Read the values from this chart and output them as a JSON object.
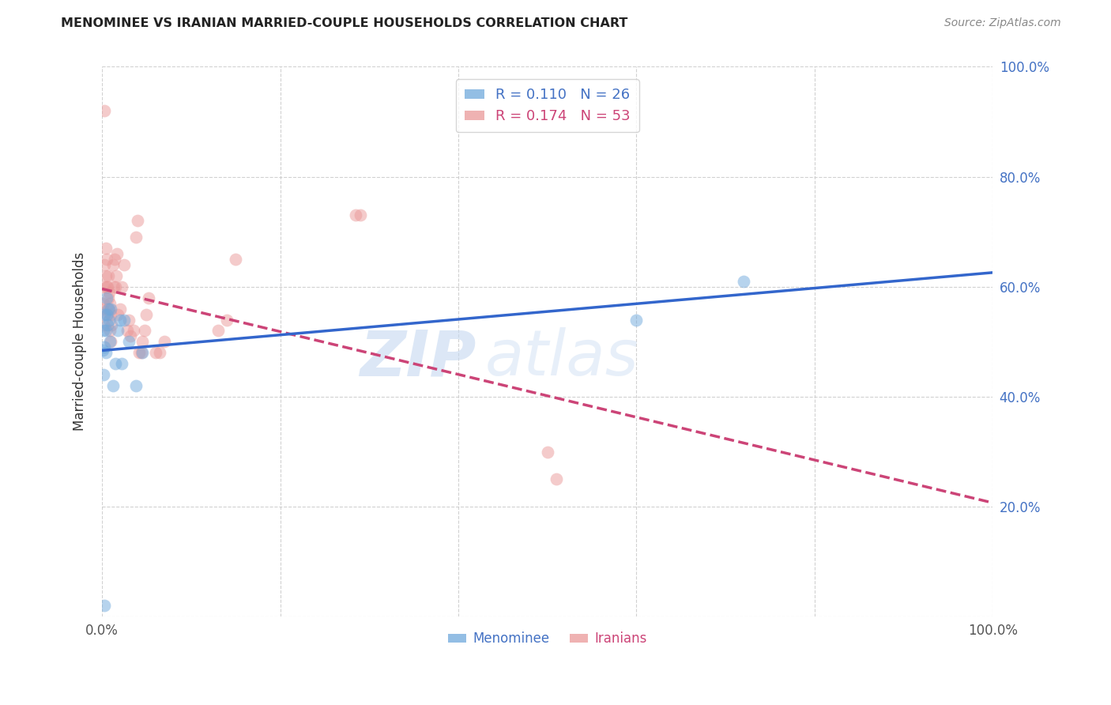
{
  "title": "MENOMINEE VS IRANIAN MARRIED-COUPLE HOUSEHOLDS CORRELATION CHART",
  "source": "Source: ZipAtlas.com",
  "ylabel": "Married-couple Households",
  "legend_menominee": "Menominee",
  "legend_iranians": "Iranians",
  "r_menominee": 0.11,
  "n_menominee": 26,
  "r_iranians": 0.174,
  "n_iranians": 53,
  "menominee_color": "#6fa8dc",
  "iranians_color": "#ea9999",
  "menominee_line_color": "#3366cc",
  "iranians_line_color": "#cc4477",
  "background_color": "#ffffff",
  "grid_color": "#cccccc",
  "menominee_x": [
    0.001,
    0.002,
    0.002,
    0.003,
    0.003,
    0.004,
    0.004,
    0.005,
    0.005,
    0.006,
    0.007,
    0.008,
    0.009,
    0.01,
    0.012,
    0.015,
    0.018,
    0.02,
    0.022,
    0.025,
    0.03,
    0.038,
    0.045,
    0.6,
    0.72,
    0.003
  ],
  "menominee_y": [
    0.485,
    0.44,
    0.52,
    0.49,
    0.55,
    0.52,
    0.48,
    0.55,
    0.58,
    0.53,
    0.56,
    0.54,
    0.5,
    0.56,
    0.42,
    0.46,
    0.52,
    0.54,
    0.46,
    0.54,
    0.5,
    0.42,
    0.48,
    0.54,
    0.61,
    0.02
  ],
  "iranians_x": [
    0.001,
    0.002,
    0.002,
    0.003,
    0.003,
    0.004,
    0.004,
    0.005,
    0.005,
    0.006,
    0.006,
    0.007,
    0.007,
    0.008,
    0.008,
    0.009,
    0.009,
    0.01,
    0.01,
    0.011,
    0.012,
    0.013,
    0.014,
    0.015,
    0.016,
    0.017,
    0.018,
    0.02,
    0.022,
    0.025,
    0.028,
    0.03,
    0.032,
    0.035,
    0.038,
    0.04,
    0.042,
    0.044,
    0.045,
    0.048,
    0.05,
    0.052,
    0.06,
    0.065,
    0.07,
    0.13,
    0.14,
    0.15,
    0.285,
    0.29,
    0.5,
    0.51,
    0.003
  ],
  "iranians_y": [
    0.56,
    0.53,
    0.57,
    0.6,
    0.64,
    0.62,
    0.67,
    0.6,
    0.65,
    0.55,
    0.6,
    0.58,
    0.62,
    0.56,
    0.59,
    0.57,
    0.52,
    0.55,
    0.5,
    0.53,
    0.64,
    0.6,
    0.65,
    0.6,
    0.62,
    0.66,
    0.55,
    0.56,
    0.6,
    0.64,
    0.52,
    0.54,
    0.51,
    0.52,
    0.69,
    0.72,
    0.48,
    0.48,
    0.5,
    0.52,
    0.55,
    0.58,
    0.48,
    0.48,
    0.5,
    0.52,
    0.54,
    0.65,
    0.73,
    0.73,
    0.3,
    0.25,
    0.92
  ],
  "watermark_zip": "ZIP",
  "watermark_atlas": "atlas",
  "marker_size": 130,
  "marker_alpha": 0.5,
  "line_width": 2.5,
  "xlim": [
    0.0,
    1.0
  ],
  "ylim": [
    0.0,
    1.0
  ],
  "ytick_positions": [
    0.0,
    0.2,
    0.4,
    0.6,
    0.8,
    1.0
  ],
  "ytick_labels_right": [
    "",
    "20.0%",
    "40.0%",
    "60.0%",
    "80.0%",
    "100.0%"
  ],
  "xtick_positions": [
    0.0,
    0.2,
    0.4,
    0.6,
    0.8,
    1.0
  ],
  "xtick_labels": [
    "0.0%",
    "",
    "",
    "",
    "",
    "100.0%"
  ]
}
